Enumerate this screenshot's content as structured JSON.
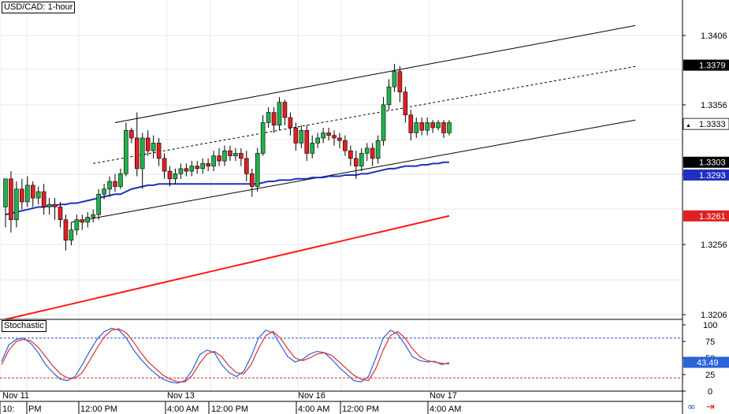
{
  "chart_title": "USD/CAD: 1-hour",
  "colors": {
    "bull": "#22b14c",
    "bear": "#e02020",
    "ema_fast": "#1f2fbf",
    "ema_slow": "#ff1a1a",
    "stoch_k": "#2a62d8",
    "stoch_d": "#e03030",
    "channel": "#000000",
    "grid": "#e8e8e8"
  },
  "icons": [
    "link-icon",
    "arrow-right-icon"
  ],
  "chart_data": [
    {
      "type": "candlestick",
      "title": "USD/CAD: 1-hour",
      "ylim": [
        1.318,
        1.343
      ],
      "y_ticks": [
        "1.3406",
        "1.3356",
        "1.3306",
        "1.3256",
        "1.3206"
      ],
      "x_tick_labels": [
        "Nov 11",
        "Nov 13",
        "Nov 16",
        "Nov 17"
      ],
      "x_time_labels": [
        "10:",
        "PM",
        "12:00 PM",
        "4:00 AM",
        "12:00 PM",
        "4:00 AM",
        "12:00 PM",
        "4:00 AM"
      ],
      "price_tags": [
        {
          "value": 1.3379,
          "label": "1.3379",
          "style": "black"
        },
        {
          "value": 1.3333,
          "label": "1.3333",
          "style": "white"
        },
        {
          "value": 1.3303,
          "label": "1.3303",
          "style": "black"
        },
        {
          "value": 1.3293,
          "label": "1.3293",
          "style": "blue"
        },
        {
          "value": 1.3261,
          "label": "1.3261",
          "style": "red"
        }
      ],
      "candles": [
        [
          1.3268,
          1.329,
          1.3262,
          1.3252
        ],
        [
          1.329,
          1.3258,
          1.3296,
          1.3248
        ],
        [
          1.3258,
          1.3282,
          1.3288,
          1.3252
        ],
        [
          1.3282,
          1.3272,
          1.329,
          1.3266
        ],
        [
          1.3272,
          1.3285,
          1.3292,
          1.3268
        ],
        [
          1.3285,
          1.3275,
          1.3288,
          1.3268
        ],
        [
          1.3275,
          1.328,
          1.3284,
          1.327
        ],
        [
          1.328,
          1.3268,
          1.3286,
          1.3262
        ],
        [
          1.3268,
          1.327,
          1.3275,
          1.3262
        ],
        [
          1.327,
          1.3268,
          1.3275,
          1.3258
        ],
        [
          1.3268,
          1.3258,
          1.3272,
          1.3252
        ],
        [
          1.3258,
          1.3242,
          1.3262,
          1.3234
        ],
        [
          1.3242,
          1.325,
          1.3256,
          1.3238
        ],
        [
          1.325,
          1.3258,
          1.3262,
          1.3246
        ],
        [
          1.3258,
          1.3256,
          1.3262,
          1.325
        ],
        [
          1.3256,
          1.326,
          1.3264,
          1.3252
        ],
        [
          1.326,
          1.3262,
          1.3266,
          1.3256
        ],
        [
          1.3262,
          1.3278,
          1.3282,
          1.3258
        ],
        [
          1.3278,
          1.3282,
          1.3286,
          1.3274
        ],
        [
          1.3282,
          1.3288,
          1.3292,
          1.3276
        ],
        [
          1.3288,
          1.3284,
          1.3294,
          1.328
        ],
        [
          1.3284,
          1.3294,
          1.3298,
          1.3282
        ],
        [
          1.3294,
          1.3328,
          1.3334,
          1.3292
        ],
        [
          1.3328,
          1.3322,
          1.333,
          1.3318
        ],
        [
          1.3322,
          1.3298,
          1.3342,
          1.3292
        ],
        [
          1.3298,
          1.3322,
          1.3326,
          1.3282
        ],
        [
          1.3322,
          1.3312,
          1.3328,
          1.3308
        ],
        [
          1.3312,
          1.3318,
          1.3324,
          1.3306
        ],
        [
          1.3318,
          1.3306,
          1.3322,
          1.33
        ],
        [
          1.3306,
          1.3296,
          1.331,
          1.329
        ],
        [
          1.3296,
          1.329,
          1.33,
          1.3284
        ],
        [
          1.329,
          1.3294,
          1.3298,
          1.3286
        ],
        [
          1.3294,
          1.3298,
          1.3302,
          1.329
        ],
        [
          1.3298,
          1.3296,
          1.3302,
          1.3292
        ],
        [
          1.3296,
          1.33,
          1.3304,
          1.3292
        ],
        [
          1.33,
          1.3298,
          1.3304,
          1.3294
        ],
        [
          1.3298,
          1.3302,
          1.3306,
          1.3294
        ],
        [
          1.3302,
          1.33,
          1.3306,
          1.3296
        ],
        [
          1.33,
          1.3308,
          1.3312,
          1.3296
        ],
        [
          1.3308,
          1.3304,
          1.3314,
          1.33
        ],
        [
          1.3304,
          1.3312,
          1.3316,
          1.33
        ],
        [
          1.3312,
          1.3308,
          1.3316,
          1.3304
        ],
        [
          1.3308,
          1.331,
          1.3314,
          1.3304
        ],
        [
          1.331,
          1.3306,
          1.3314,
          1.33
        ],
        [
          1.3306,
          1.3294,
          1.3312,
          1.3288
        ],
        [
          1.3294,
          1.3284,
          1.3298,
          1.3276
        ],
        [
          1.3284,
          1.331,
          1.3314,
          1.328
        ],
        [
          1.331,
          1.3334,
          1.334,
          1.3308
        ],
        [
          1.3334,
          1.3342,
          1.3346,
          1.333
        ],
        [
          1.3342,
          1.3332,
          1.3346,
          1.3326
        ],
        [
          1.3332,
          1.335,
          1.3354,
          1.3328
        ],
        [
          1.335,
          1.3338,
          1.3352,
          1.3332
        ],
        [
          1.3338,
          1.333,
          1.3342,
          1.3324
        ],
        [
          1.333,
          1.3318,
          1.3334,
          1.3312
        ],
        [
          1.3318,
          1.3328,
          1.3332,
          1.3314
        ],
        [
          1.3328,
          1.331,
          1.3332,
          1.3304
        ],
        [
          1.331,
          1.3318,
          1.3324,
          1.3306
        ],
        [
          1.3318,
          1.3322,
          1.3326,
          1.3314
        ],
        [
          1.3322,
          1.3326,
          1.333,
          1.3318
        ],
        [
          1.3326,
          1.3324,
          1.333,
          1.332
        ],
        [
          1.3324,
          1.3322,
          1.3328,
          1.3316
        ],
        [
          1.3322,
          1.332,
          1.3326,
          1.3314
        ],
        [
          1.332,
          1.3312,
          1.3324,
          1.3308
        ],
        [
          1.3312,
          1.3306,
          1.3316,
          1.33
        ],
        [
          1.3306,
          1.33,
          1.3312,
          1.329
        ],
        [
          1.33,
          1.331,
          1.3314,
          1.3296
        ],
        [
          1.331,
          1.3314,
          1.3318,
          1.3304
        ],
        [
          1.3314,
          1.3306,
          1.3318,
          1.33
        ],
        [
          1.3306,
          1.332,
          1.3324,
          1.3302
        ],
        [
          1.332,
          1.3348,
          1.3354,
          1.3316
        ],
        [
          1.3348,
          1.3362,
          1.3368,
          1.3344
        ],
        [
          1.3362,
          1.3374,
          1.338,
          1.3358
        ],
        [
          1.3374,
          1.3358,
          1.3378,
          1.335
        ],
        [
          1.3358,
          1.334,
          1.3362,
          1.3334
        ],
        [
          1.334,
          1.3326,
          1.3344,
          1.332
        ],
        [
          1.3326,
          1.3334,
          1.3338,
          1.3322
        ],
        [
          1.3334,
          1.3328,
          1.3338,
          1.3324
        ],
        [
          1.3328,
          1.3334,
          1.3338,
          1.3324
        ],
        [
          1.3334,
          1.333,
          1.3336,
          1.3326
        ],
        [
          1.333,
          1.3334,
          1.3336,
          1.3328
        ],
        [
          1.3334,
          1.3326,
          1.3336,
          1.3322
        ],
        [
          1.3326,
          1.3334,
          1.3336,
          1.3324
        ]
      ],
      "series": [
        {
          "name": "",
          "type": "line",
          "color": "ema_fast",
          "values": [
            1.3262,
            1.3263,
            1.3264,
            1.3265,
            1.3266,
            1.3267,
            1.3268,
            1.3268,
            1.3269,
            1.3269,
            1.327,
            1.327,
            1.3271,
            1.3271,
            1.3272,
            1.3273,
            1.3274,
            1.3275,
            1.3276,
            1.3277,
            1.3278,
            1.3278,
            1.328,
            1.3282,
            1.3283,
            1.3284,
            1.3285,
            1.3285,
            1.3286,
            1.3286,
            1.3286,
            1.3286,
            1.3286,
            1.3286,
            1.3286,
            1.3286,
            1.3286,
            1.3286,
            1.3286,
            1.3286,
            1.3286,
            1.3286,
            1.3286,
            1.3286,
            1.3286,
            1.3286,
            1.3286,
            1.3287,
            1.3288,
            1.3288,
            1.3289,
            1.3289,
            1.3289,
            1.329,
            1.329,
            1.329,
            1.3291,
            1.3291,
            1.3291,
            1.3292,
            1.3292,
            1.3292,
            1.3293,
            1.3293,
            1.3293,
            1.3294,
            1.3294,
            1.3295,
            1.3296,
            1.3297,
            1.3298,
            1.3298,
            1.3299,
            1.33,
            1.33,
            1.33,
            1.3301,
            1.3301,
            1.3302,
            1.3302,
            1.3303,
            1.3303
          ]
        },
        {
          "name": "",
          "type": "line",
          "color": "ema_slow",
          "values": [
            1.318,
            1.3181,
            1.3182,
            1.3183,
            1.3184,
            1.3185,
            1.3186,
            1.3187,
            1.3188,
            1.3189,
            1.319,
            1.3191,
            1.3192,
            1.3193,
            1.3194,
            1.3195,
            1.3196,
            1.3197,
            1.3198,
            1.3199,
            1.32,
            1.3201,
            1.3202,
            1.3203,
            1.3204,
            1.3205,
            1.3206,
            1.3207,
            1.3208,
            1.3209,
            1.321,
            1.3211,
            1.3212,
            1.3213,
            1.3214,
            1.3215,
            1.3216,
            1.3217,
            1.3218,
            1.3219,
            1.322,
            1.3221,
            1.3222,
            1.3223,
            1.3224,
            1.3225,
            1.3226,
            1.3227,
            1.3228,
            1.3229,
            1.323,
            1.3231,
            1.3232,
            1.3233,
            1.3234,
            1.3235,
            1.3236,
            1.3237,
            1.3238,
            1.3239,
            1.324,
            1.3241,
            1.3242,
            1.3243,
            1.3244,
            1.3245,
            1.3246,
            1.3247,
            1.3248,
            1.3249,
            1.325,
            1.3251,
            1.3252,
            1.3253,
            1.3254,
            1.3255,
            1.3256,
            1.3257,
            1.3258,
            1.3259,
            1.326,
            1.3261
          ]
        }
      ],
      "channel": {
        "upper": [
          [
            20,
            1.3334
          ],
          [
            115,
            1.341
          ]
        ],
        "middle": [
          [
            16,
            1.3302
          ],
          [
            115,
            1.3378
          ]
        ],
        "lower": [
          [
            12,
            1.3256
          ],
          [
            115,
            1.3336
          ]
        ]
      }
    },
    {
      "type": "line",
      "title": "Stochastic",
      "ylim": [
        0,
        100
      ],
      "y_ticks": [
        "100",
        "75",
        "50",
        "25",
        "0"
      ],
      "value_tag": "43.49",
      "levels": [
        80,
        20
      ],
      "series": [
        {
          "name": "",
          "color": "stoch_k",
          "values": [
            45,
            70,
            78,
            80,
            72,
            58,
            40,
            28,
            18,
            16,
            22,
            40,
            60,
            78,
            90,
            95,
            92,
            80,
            62,
            48,
            36,
            26,
            18,
            14,
            12,
            16,
            32,
            55,
            62,
            58,
            40,
            28,
            22,
            30,
            52,
            80,
            92,
            88,
            70,
            52,
            44,
            48,
            56,
            60,
            58,
            48,
            36,
            26,
            16,
            14,
            22,
            50,
            80,
            92,
            86,
            70,
            52,
            46,
            44,
            45,
            40,
            43
          ]
        },
        {
          "name": "",
          "color": "stoch_d",
          "values": [
            40,
            62,
            75,
            78,
            76,
            66,
            52,
            38,
            26,
            20,
            19,
            28,
            46,
            65,
            82,
            92,
            94,
            88,
            74,
            58,
            44,
            34,
            24,
            18,
            14,
            14,
            24,
            42,
            56,
            60,
            52,
            38,
            28,
            26,
            40,
            64,
            84,
            90,
            80,
            64,
            50,
            46,
            50,
            56,
            58,
            54,
            44,
            34,
            24,
            18,
            16,
            34,
            62,
            84,
            90,
            80,
            64,
            52,
            46,
            44,
            42,
            41
          ]
        }
      ]
    }
  ]
}
